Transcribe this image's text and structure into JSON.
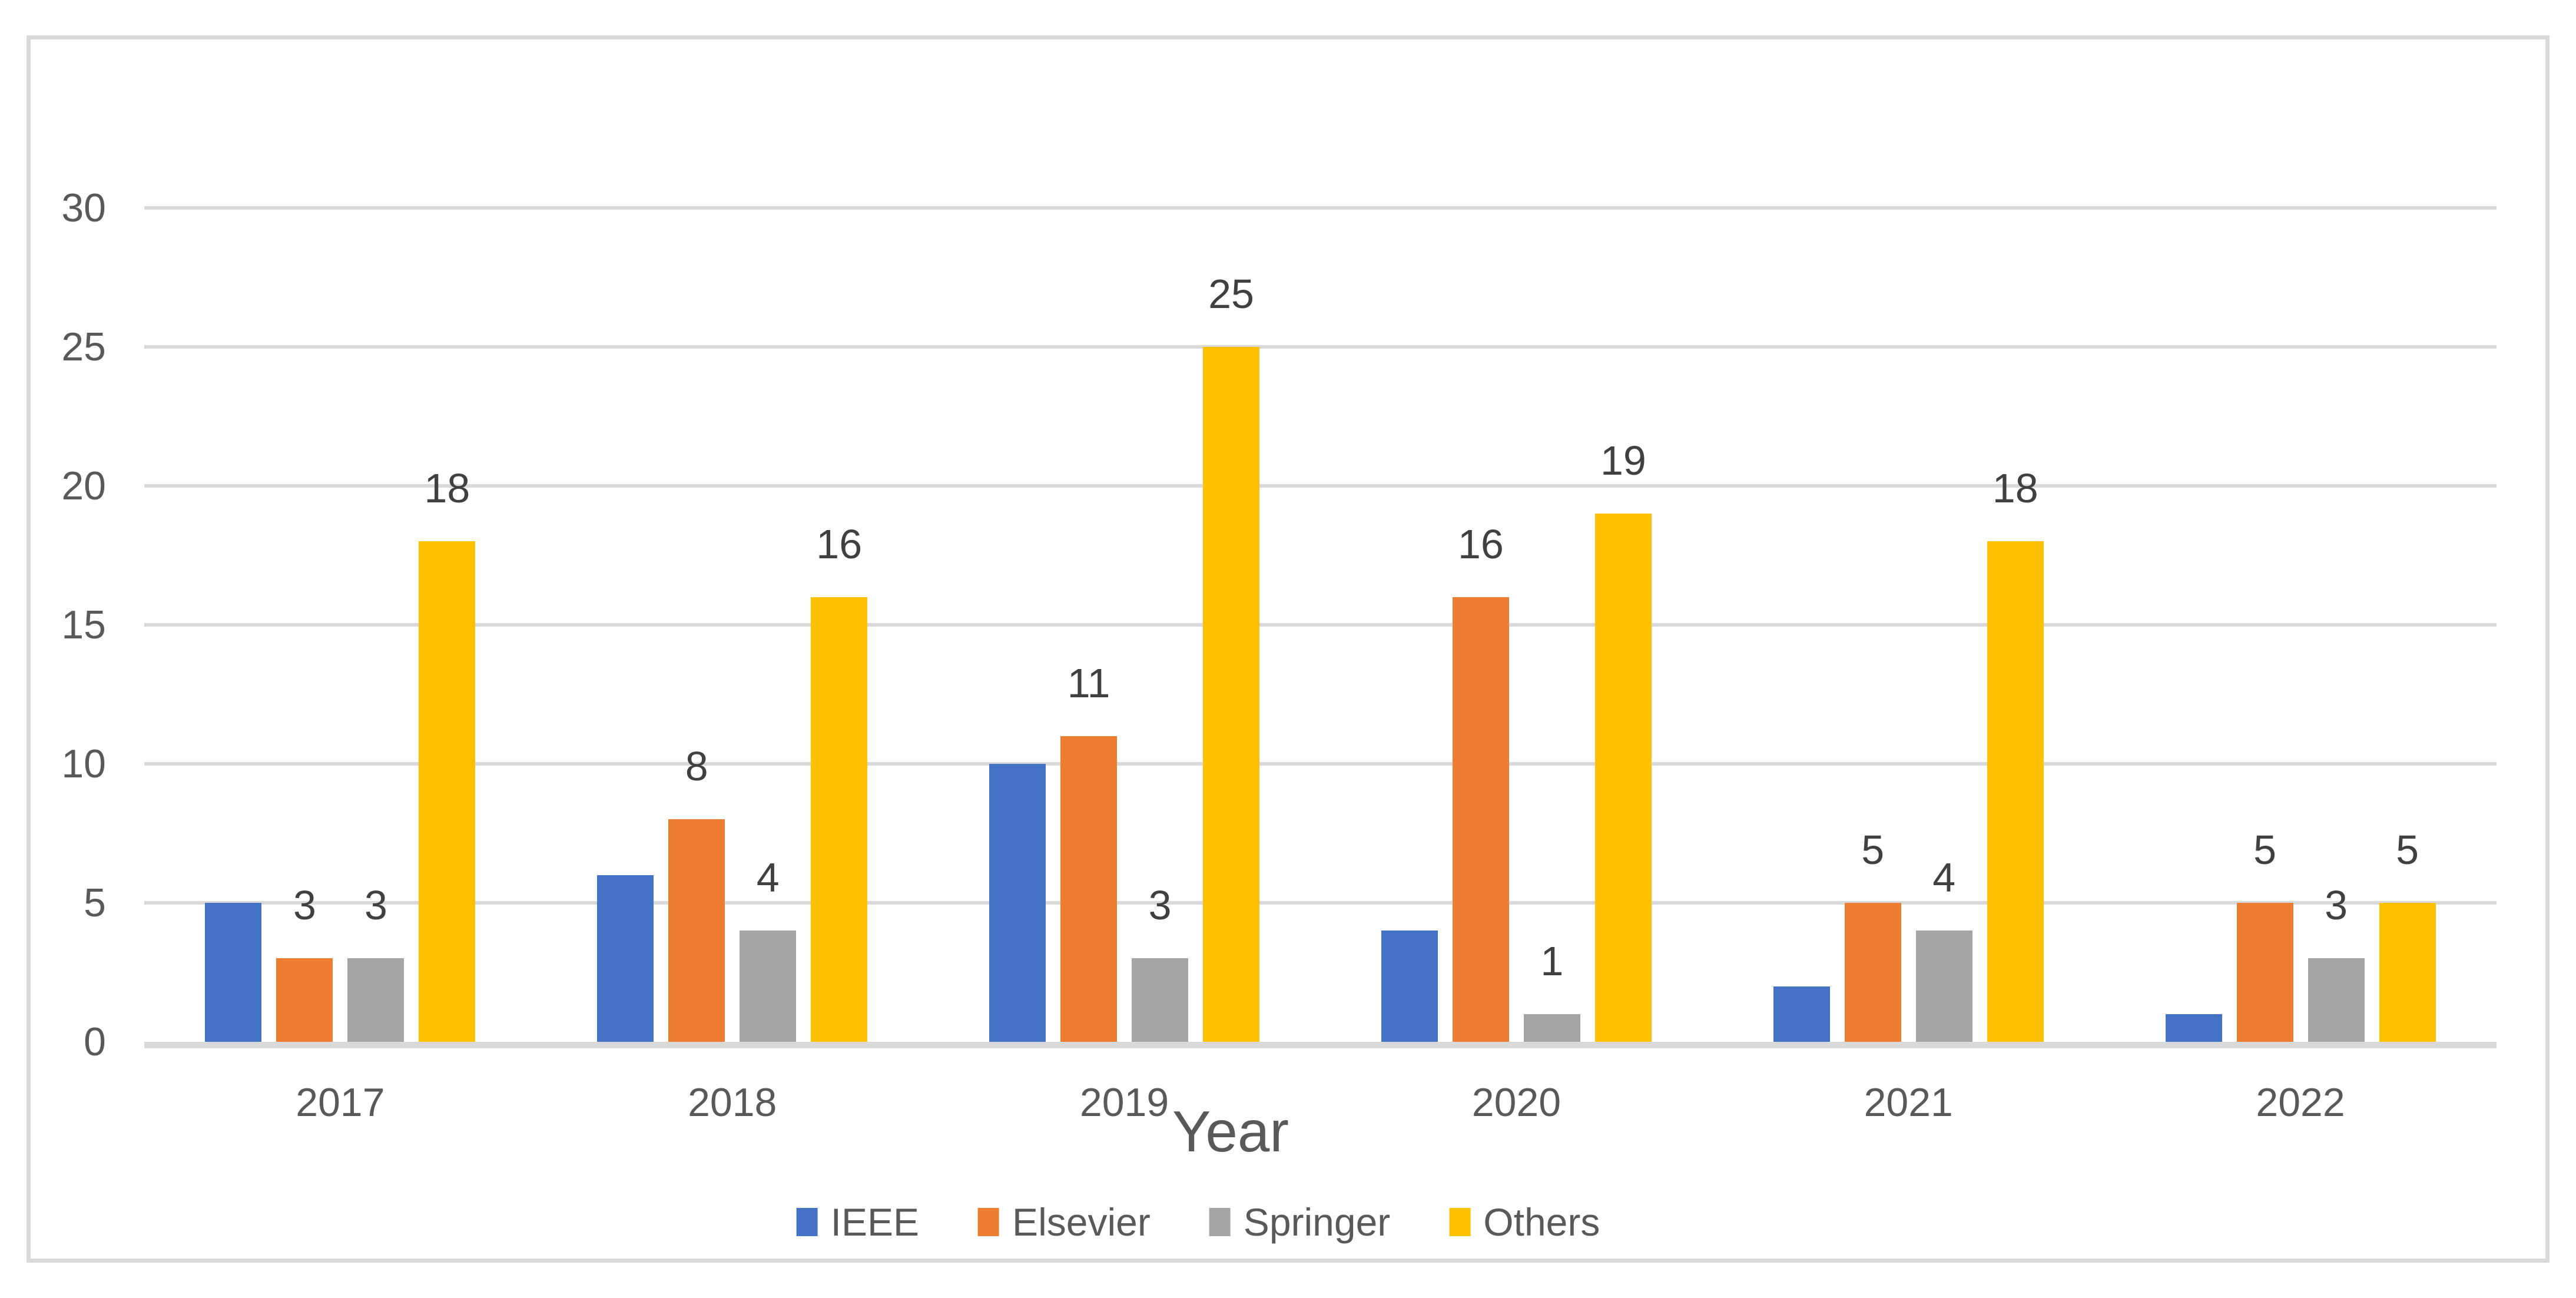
{
  "chart_data": {
    "type": "bar",
    "title": "",
    "xlabel": "Year",
    "ylabel": "",
    "categories": [
      "2017",
      "2018",
      "2019",
      "2020",
      "2021",
      "2022"
    ],
    "series": [
      {
        "name": "IEEE",
        "color": "#4472C4",
        "values": [
          5,
          6,
          10,
          4,
          2,
          1
        ],
        "data_labels": false
      },
      {
        "name": "Elsevier",
        "color": "#ED7D31",
        "values": [
          3,
          8,
          11,
          16,
          5,
          5
        ],
        "data_labels": true
      },
      {
        "name": "Springer",
        "color": "#A5A5A5",
        "values": [
          3,
          4,
          3,
          1,
          4,
          3
        ],
        "data_labels": true
      },
      {
        "name": "Others",
        "color": "#FFC000",
        "values": [
          18,
          16,
          25,
          19,
          18,
          5
        ],
        "data_labels": true
      }
    ],
    "y_axis": {
      "min": 0,
      "max": 30,
      "step": 5,
      "tick_labels": [
        "0",
        "5",
        "10",
        "15",
        "20",
        "25",
        "30"
      ]
    },
    "grid": true,
    "legend_position": "bottom",
    "legend_entries": [
      "IEEE",
      "Elsevier",
      "Springer",
      "Others"
    ]
  },
  "styles": {
    "background_color": "#FFFFFF",
    "frame_border_color": "#D9D9D9",
    "gridline_color": "#D9D9D9",
    "axis_line_color": "#D9D9D9",
    "tick_label_color": "#595959",
    "data_label_color": "#404040",
    "axis_title_color": "#595959",
    "legend_text_color": "#595959"
  }
}
